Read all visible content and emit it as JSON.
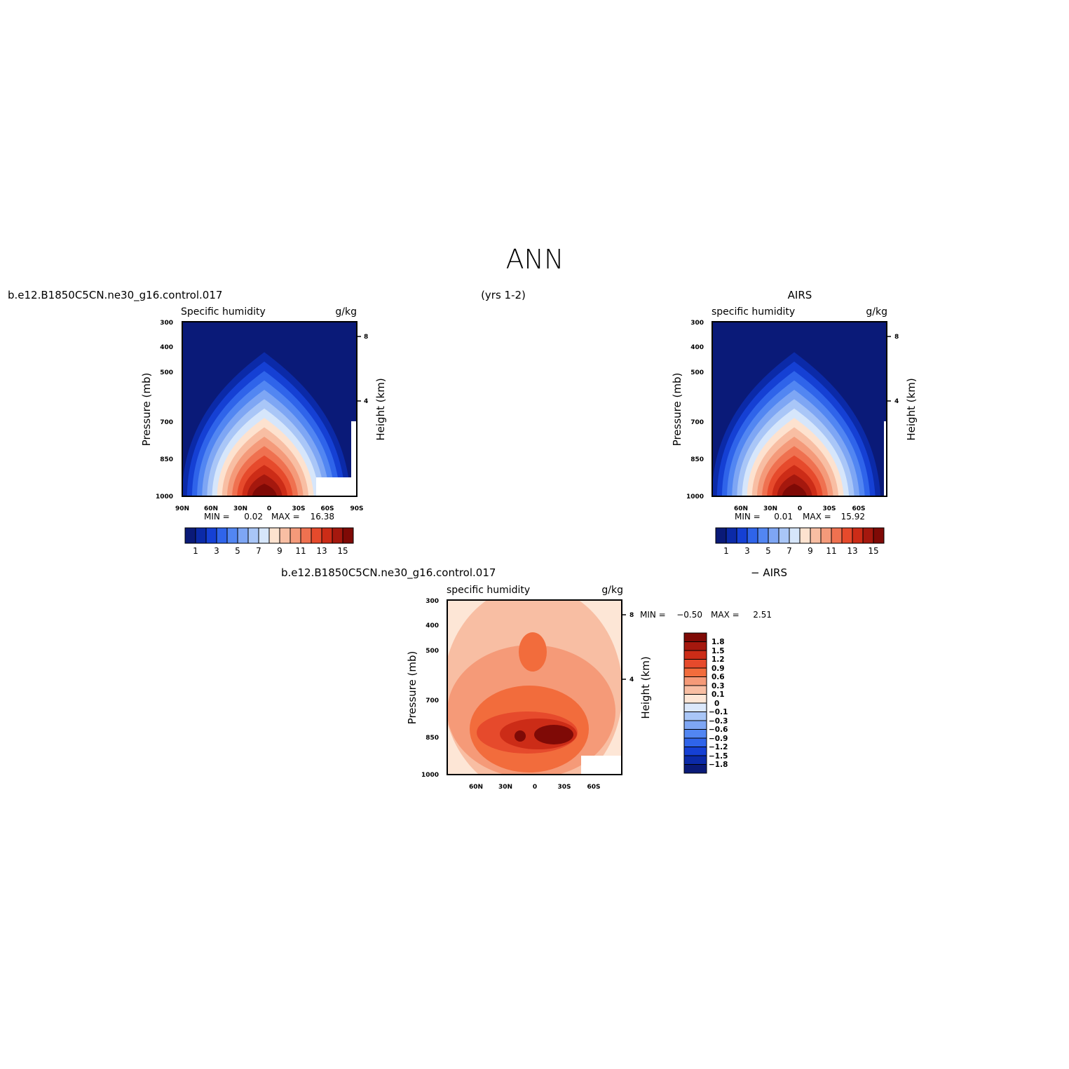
{
  "figure": {
    "title": "ANN",
    "left_case": "b.e12.B1850C5CN.ne30_g16.control.017",
    "center_note": "(yrs 1-2)",
    "right_case": "AIRS",
    "diff_case": "b.e12.B1850C5CN.ne30_g16.control.017",
    "diff_minus": "− AIRS"
  },
  "chart_data": [
    {
      "type": "heatmap",
      "panel": "model",
      "title": "Specific humidity",
      "units": "g/kg",
      "ylabel": "Pressure (mb)",
      "ylabel_right": "Height (km)",
      "y_ticks": [
        "300",
        "400",
        "500",
        "700",
        "850",
        "1000"
      ],
      "y_right_ticks": [
        "8",
        "4"
      ],
      "x_ticks": [
        "90N",
        "60N",
        "30N",
        "0",
        "30S",
        "60S",
        "90S"
      ],
      "min_label": "MIN =",
      "min_value": "0.02",
      "max_label": "MAX =",
      "max_value": "16.38",
      "colorbar_labels": [
        "1",
        "3",
        "5",
        "7",
        "9",
        "11",
        "13",
        "15"
      ],
      "peak_latitude": -5,
      "peak_value": 16.38
    },
    {
      "type": "heatmap",
      "panel": "obs",
      "title": "specific humidity",
      "units": "g/kg",
      "ylabel": "Pressure (mb)",
      "ylabel_right": "Height (km)",
      "y_ticks": [
        "300",
        "400",
        "500",
        "700",
        "850",
        "1000"
      ],
      "y_right_ticks": [
        "8",
        "4"
      ],
      "x_ticks": [
        "60N",
        "30N",
        "0",
        "30S",
        "60S"
      ],
      "min_label": "MIN =",
      "min_value": "0.01",
      "max_label": "MAX =",
      "max_value": "15.92",
      "colorbar_labels": [
        "1",
        "3",
        "5",
        "7",
        "9",
        "11",
        "13",
        "15"
      ],
      "peak_latitude": -5,
      "peak_value": 15.92
    },
    {
      "type": "heatmap",
      "panel": "difference",
      "title": "specific humidity",
      "units": "g/kg",
      "ylabel": "Pressure (mb)",
      "ylabel_right": "Height (km)",
      "y_ticks": [
        "300",
        "400",
        "500",
        "700",
        "850",
        "1000"
      ],
      "y_right_ticks": [
        "8",
        "4"
      ],
      "x_ticks": [
        "60N",
        "30N",
        "0",
        "30S",
        "60S"
      ],
      "min_label": "MIN =",
      "min_value": "−0.50",
      "max_label": "MAX =",
      "max_value": "2.51",
      "colorbar_labels": [
        "1.8",
        "1.5",
        "1.2",
        "0.9",
        "0.6",
        "0.3",
        "0.1",
        "0",
        "−0.1",
        "−0.3",
        "−0.6",
        "−0.9",
        "−1.2",
        "−1.5",
        "−1.8"
      ]
    }
  ],
  "palettes": {
    "abs": [
      "#0a1a78",
      "#0b2aa8",
      "#1540d4",
      "#2f64ea",
      "#5286f2",
      "#7ea6f4",
      "#a9c6f7",
      "#d6e6fb",
      "#fde2cf",
      "#f8bea3",
      "#f49a7a",
      "#ef7150",
      "#e64a2c",
      "#cc2c17",
      "#a5180e",
      "#7f0a06"
    ],
    "diff_pos": [
      "#7f0a06",
      "#a5180e",
      "#cc2c17",
      "#e64a2c",
      "#f26c3c",
      "#f59a78",
      "#f8bea3",
      "#fde6d6"
    ],
    "diff_neg": [
      "#dbe8fb",
      "#a9c6f7",
      "#7ea6f4",
      "#5286f2",
      "#2f64ea",
      "#1540d4",
      "#0b2aa8",
      "#0a1a78"
    ]
  }
}
